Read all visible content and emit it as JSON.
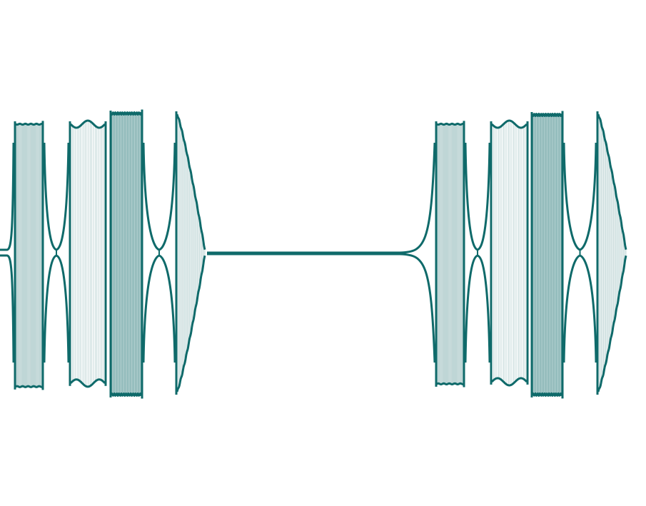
{
  "figure": {
    "background": "#ffffff",
    "stroke_color": "#0f6a6a",
    "fill_line_color": "#8fb7b7",
    "groups": [
      {
        "name": "group-left",
        "bursts": [
          {
            "name": "burst-1",
            "shape": "flat",
            "fill_density": 0.85
          },
          {
            "name": "burst-2",
            "shape": "wavy-top",
            "fill_density": 0.35
          },
          {
            "name": "burst-3",
            "shape": "dense-flat",
            "fill_density": 1.0
          },
          {
            "name": "burst-4",
            "shape": "decay",
            "fill_density": 0.5
          }
        ]
      },
      {
        "name": "group-right",
        "bursts": [
          {
            "name": "burst-1",
            "shape": "flat",
            "fill_density": 0.85
          },
          {
            "name": "burst-2",
            "shape": "wavy-top",
            "fill_density": 0.35
          },
          {
            "name": "burst-3",
            "shape": "dense-flat",
            "fill_density": 1.0
          },
          {
            "name": "burst-4",
            "shape": "decay",
            "fill_density": 0.5
          }
        ]
      }
    ],
    "connector": {
      "name": "baseline-connector",
      "shape": "flat-line"
    }
  }
}
